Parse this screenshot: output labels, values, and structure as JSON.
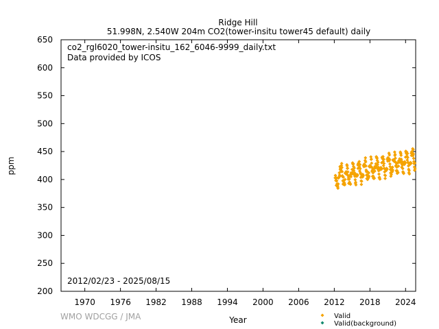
{
  "header": {
    "station": "Ridge Hill",
    "meta": "51.998N, 2.540W 204m    CO2(tower-insitu tower45 default) daily"
  },
  "watermark": "WMO WDCGG / JMA",
  "chart_data": {
    "type": "scatter",
    "title": "Ridge Hill",
    "subtitle": "51.998N, 2.540W 204m    CO2(tower-insitu tower45 default) daily",
    "xlabel": "Year",
    "ylabel": "ppm",
    "xlim": [
      1966,
      2025.7
    ],
    "ylim": [
      200,
      650
    ],
    "x_ticks": [
      1970,
      1976,
      1982,
      1988,
      1994,
      2000,
      2006,
      2012,
      2018,
      2024
    ],
    "y_ticks": [
      200,
      250,
      300,
      350,
      400,
      450,
      500,
      550,
      600,
      650
    ],
    "annotations": {
      "file": "co2_rgl6020_tower-insitu_162_6046-9999_daily.txt",
      "provider": "Data provided by ICOS",
      "period": "2012/02/23 - 2025/08/15"
    },
    "grid": false,
    "legend_position": "bottom-right",
    "series": [
      {
        "name": "Valid",
        "color": "#f5a300",
        "marker": "diamond",
        "values": [
          [
            2012.15,
            403
          ],
          [
            2012.3,
            398
          ],
          [
            2012.5,
            388
          ],
          [
            2012.65,
            392
          ],
          [
            2012.85,
            412
          ],
          [
            2013.0,
            418
          ],
          [
            2013.2,
            425
          ],
          [
            2013.4,
            405
          ],
          [
            2013.6,
            391
          ],
          [
            2013.8,
            400
          ],
          [
            2014.0,
            414
          ],
          [
            2014.2,
            420
          ],
          [
            2014.4,
            404
          ],
          [
            2014.6,
            393
          ],
          [
            2014.8,
            405
          ],
          [
            2015.0,
            418
          ],
          [
            2015.2,
            428
          ],
          [
            2015.4,
            409
          ],
          [
            2015.6,
            395
          ],
          [
            2015.8,
            406
          ],
          [
            2016.0,
            420
          ],
          [
            2016.2,
            432
          ],
          [
            2016.4,
            412
          ],
          [
            2016.6,
            397
          ],
          [
            2016.8,
            409
          ],
          [
            2017.0,
            423
          ],
          [
            2017.2,
            434
          ],
          [
            2017.4,
            414
          ],
          [
            2017.6,
            400
          ],
          [
            2017.8,
            412
          ],
          [
            2018.0,
            425
          ],
          [
            2018.2,
            436
          ],
          [
            2018.4,
            416
          ],
          [
            2018.6,
            402
          ],
          [
            2018.8,
            415
          ],
          [
            2019.0,
            428
          ],
          [
            2019.2,
            438
          ],
          [
            2019.4,
            418
          ],
          [
            2019.6,
            404
          ],
          [
            2019.8,
            418
          ],
          [
            2020.0,
            430
          ],
          [
            2020.2,
            441
          ],
          [
            2020.4,
            420
          ],
          [
            2020.6,
            407
          ],
          [
            2020.8,
            420
          ],
          [
            2021.0,
            433
          ],
          [
            2021.2,
            447
          ],
          [
            2021.4,
            423
          ],
          [
            2021.6,
            409
          ],
          [
            2021.8,
            422
          ],
          [
            2022.0,
            435
          ],
          [
            2022.2,
            443
          ],
          [
            2022.4,
            425
          ],
          [
            2022.6,
            411
          ],
          [
            2022.8,
            424
          ],
          [
            2023.0,
            437
          ],
          [
            2023.2,
            446
          ],
          [
            2023.4,
            427
          ],
          [
            2023.6,
            413
          ],
          [
            2023.8,
            427
          ],
          [
            2024.0,
            440
          ],
          [
            2024.2,
            449
          ],
          [
            2024.4,
            430
          ],
          [
            2024.6,
            416
          ],
          [
            2024.8,
            430
          ],
          [
            2025.0,
            443
          ],
          [
            2025.2,
            455
          ],
          [
            2025.4,
            432
          ],
          [
            2025.6,
            419
          ]
        ]
      },
      {
        "name": "Valid(background)",
        "color": "#138a6e",
        "marker": "diamond",
        "values": []
      }
    ]
  }
}
